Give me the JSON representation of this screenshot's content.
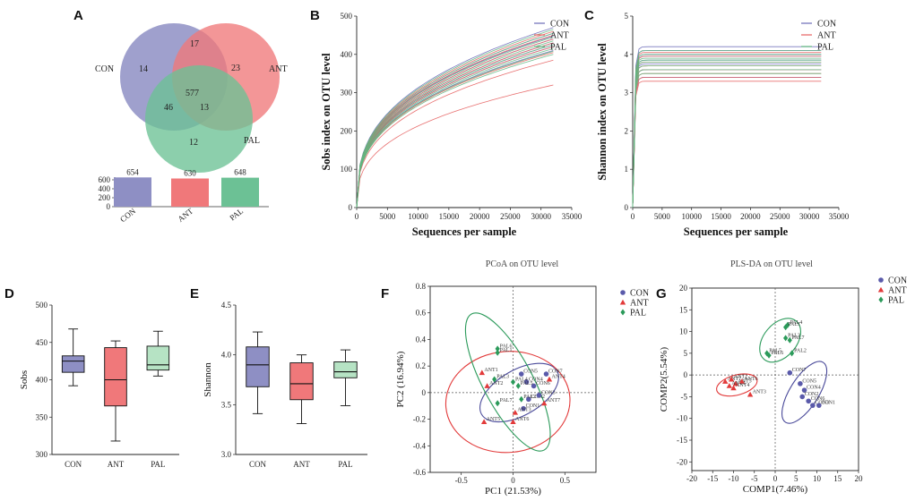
{
  "colors": {
    "CON": "#4a4a9a",
    "ANT": "#e23a3a",
    "PAL": "#2b9a5a",
    "CON_fill": "#8e8fc4",
    "ANT_fill": "#f0787a",
    "PAL_fill": "#6cc195",
    "CON_curve": "#6a6ab8",
    "ANT_curve": "#e56060",
    "PAL_curve": "#5fb77f"
  },
  "groups": [
    "CON",
    "ANT",
    "PAL"
  ],
  "chart_data": [
    {
      "panel": "A",
      "type": "venn",
      "labels": [
        "CON",
        "ANT",
        "PAL"
      ],
      "regions": {
        "CON_only": "14",
        "ANT_only": "23",
        "PAL_only": "12",
        "CON_ANT": "17",
        "CON_PAL": "46",
        "ANT_PAL": "13",
        "all": "577"
      },
      "bar": {
        "type": "bar",
        "categories": [
          "CON",
          "ANT",
          "PAL"
        ],
        "values": [
          654,
          630,
          648
        ],
        "value_labels": [
          "654",
          "630",
          "648"
        ],
        "ylim": [
          0,
          600
        ],
        "yticks": [
          "0",
          "200",
          "400",
          "600"
        ]
      }
    },
    {
      "panel": "B",
      "type": "line",
      "title": "",
      "xlabel": "Sequences per sample",
      "ylabel": "Sobs index on OTU level",
      "xlim": [
        0,
        35000
      ],
      "ylim": [
        0,
        500
      ],
      "xticks": [
        "0",
        "5000",
        "10000",
        "15000",
        "20000",
        "25000",
        "30000",
        "35000"
      ],
      "yticks": [
        "0",
        "100",
        "200",
        "300",
        "400",
        "500"
      ],
      "legend": [
        "CON",
        "ANT",
        "PAL"
      ],
      "max_x": 32000,
      "final_values": {
        "CON": [
          470,
          455,
          448,
          440,
          430,
          425,
          420,
          410
        ],
        "ANT": [
          460,
          450,
          440,
          430,
          420,
          405,
          385,
          320
        ],
        "PAL": [
          465,
          455,
          445,
          435,
          425,
          415,
          408,
          400
        ]
      }
    },
    {
      "panel": "C",
      "type": "line",
      "xlabel": "Sequences per sample",
      "ylabel": "Shannon index on OTU level",
      "xlim": [
        0,
        35000
      ],
      "ylim": [
        0,
        5
      ],
      "xticks": [
        "0",
        "5000",
        "10000",
        "15000",
        "20000",
        "25000",
        "30000",
        "35000"
      ],
      "yticks": [
        "0",
        "1",
        "2",
        "3",
        "4",
        "5"
      ],
      "legend": [
        "CON",
        "ANT",
        "PAL"
      ],
      "max_x": 32000,
      "final_values": {
        "CON": [
          4.2,
          4.1,
          4.0,
          3.95,
          3.85,
          3.75,
          3.6,
          3.4
        ],
        "ANT": [
          4.05,
          3.95,
          3.8,
          3.7,
          3.6,
          3.5,
          3.4,
          3.3
        ],
        "PAL": [
          4.1,
          4.0,
          3.9,
          3.85,
          3.8,
          3.7,
          3.6,
          3.5
        ]
      }
    },
    {
      "panel": "D",
      "type": "box",
      "ylabel": "Sobs",
      "categories": [
        "CON",
        "ANT",
        "PAL"
      ],
      "ylim": [
        300,
        500
      ],
      "yticks": [
        "300",
        "350",
        "400",
        "450",
        "500"
      ],
      "boxes": [
        {
          "min": 392,
          "q1": 410,
          "median": 425,
          "q3": 432,
          "max": 468
        },
        {
          "min": 318,
          "q1": 365,
          "median": 400,
          "q3": 443,
          "max": 452
        },
        {
          "min": 405,
          "q1": 413,
          "median": 420,
          "q3": 445,
          "max": 465
        }
      ]
    },
    {
      "panel": "E",
      "type": "box",
      "ylabel": "Shannon",
      "categories": [
        "CON",
        "ANT",
        "PAL"
      ],
      "ylim": [
        3.0,
        4.5
      ],
      "yticks": [
        "3.0",
        "3.5",
        "4.0",
        "4.5"
      ],
      "boxes": [
        {
          "min": 3.41,
          "q1": 3.68,
          "median": 3.9,
          "q3": 4.08,
          "max": 4.23
        },
        {
          "min": 3.31,
          "q1": 3.55,
          "median": 3.71,
          "q3": 3.92,
          "max": 4.0
        },
        {
          "min": 3.49,
          "q1": 3.77,
          "median": 3.83,
          "q3": 3.93,
          "max": 4.05
        }
      ]
    },
    {
      "panel": "F",
      "type": "scatter",
      "title": "PCoA on OTU level",
      "xlabel": "PC1 (21.53%)",
      "ylabel": "PC2 (16.94%)",
      "xlim": [
        -0.8,
        0.8
      ],
      "ylim": [
        -0.6,
        0.8
      ],
      "xticks": [
        "-0.5",
        "0",
        "0.5"
      ],
      "yticks": [
        "-0.6",
        "-0.4",
        "-0.2",
        "0",
        "0.2",
        "0.4",
        "0.6",
        "0.8"
      ],
      "legend": [
        "CON",
        "ANT",
        "PAL"
      ],
      "points": [
        {
          "g": "CON",
          "x": 0.08,
          "y": 0.14,
          "label": "CON5"
        },
        {
          "g": "CON",
          "x": 0.13,
          "y": 0.08,
          "label": "CON4"
        },
        {
          "g": "CON",
          "x": 0.2,
          "y": 0.05,
          "label": "CON6"
        },
        {
          "g": "CON",
          "x": 0.15,
          "y": -0.05,
          "label": "CON2"
        },
        {
          "g": "CON",
          "x": 0.25,
          "y": -0.02,
          "label": "CON3"
        },
        {
          "g": "CON",
          "x": 0.32,
          "y": 0.14,
          "label": "CON7"
        },
        {
          "g": "CON",
          "x": 0.1,
          "y": -0.12,
          "label": "CON1"
        },
        {
          "g": "ANT",
          "x": -0.3,
          "y": 0.15,
          "label": "ANT1"
        },
        {
          "g": "ANT",
          "x": -0.25,
          "y": 0.05,
          "label": "ANT2"
        },
        {
          "g": "ANT",
          "x": -0.28,
          "y": -0.22,
          "label": "ANT5"
        },
        {
          "g": "ANT",
          "x": 0.3,
          "y": -0.08,
          "label": "ANT7"
        },
        {
          "g": "ANT",
          "x": 0.35,
          "y": 0.1,
          "label": "ANT4"
        },
        {
          "g": "ANT",
          "x": 0.02,
          "y": -0.15,
          "label": "ANT3"
        },
        {
          "g": "ANT",
          "x": 0.0,
          "y": -0.22,
          "label": "ANT6"
        },
        {
          "g": "PAL",
          "x": -0.15,
          "y": 0.33,
          "label": "PAL6"
        },
        {
          "g": "PAL",
          "x": -0.15,
          "y": 0.3,
          "label": "PAL1"
        },
        {
          "g": "PAL",
          "x": -0.18,
          "y": 0.1,
          "label": "PAL3"
        },
        {
          "g": "PAL",
          "x": 0.0,
          "y": 0.08,
          "label": "PAL4"
        },
        {
          "g": "PAL",
          "x": -0.15,
          "y": -0.08,
          "label": "PAL7"
        },
        {
          "g": "PAL",
          "x": 0.05,
          "y": 0.05,
          "label": "PAL5"
        },
        {
          "g": "PAL",
          "x": 0.08,
          "y": -0.05,
          "label": "PAL2"
        }
      ],
      "ellipses": [
        {
          "g": "CON",
          "cx": 0.06,
          "cy": 0.0,
          "rx": 0.42,
          "ry": 0.17,
          "rot": -30
        },
        {
          "g": "ANT",
          "cx": -0.05,
          "cy": -0.07,
          "rx": 0.6,
          "ry": 0.38,
          "rot": -5
        },
        {
          "g": "PAL",
          "cx": -0.05,
          "cy": 0.08,
          "rx": 0.24,
          "ry": 0.58,
          "rot": -28
        }
      ]
    },
    {
      "panel": "G",
      "type": "scatter",
      "title": "PLS-DA on OTU level",
      "xlabel": "COMP1(7.46%)",
      "ylabel": "COMP2(5.54%)",
      "xlim": [
        -20,
        20
      ],
      "ylim": [
        -22,
        20
      ],
      "xticks": [
        "-20",
        "-15",
        "-10",
        "-5",
        "0",
        "5",
        "10",
        "15",
        "20"
      ],
      "yticks": [
        "-20",
        "-15",
        "-10",
        "-5",
        "0",
        "5",
        "10",
        "15",
        "20"
      ],
      "legend": [
        "CON",
        "ANT",
        "PAL"
      ],
      "points": [
        {
          "g": "CON",
          "x": 3.5,
          "y": 0.5,
          "label": "CON7"
        },
        {
          "g": "CON",
          "x": 6,
          "y": -2,
          "label": "CON5"
        },
        {
          "g": "CON",
          "x": 7,
          "y": -3.5,
          "label": "CON4"
        },
        {
          "g": "CON",
          "x": 6.5,
          "y": -5,
          "label": "CON2"
        },
        {
          "g": "CON",
          "x": 8,
          "y": -6,
          "label": "CON6"
        },
        {
          "g": "CON",
          "x": 9,
          "y": -7,
          "label": "CON3"
        },
        {
          "g": "CON",
          "x": 10.5,
          "y": -7,
          "label": "CON1"
        },
        {
          "g": "ANT",
          "x": -12,
          "y": -1.5,
          "label": "ANT7"
        },
        {
          "g": "ANT",
          "x": -10.5,
          "y": -1,
          "label": "ANT2"
        },
        {
          "g": "ANT",
          "x": -9.5,
          "y": -2,
          "label": "ANT5"
        },
        {
          "g": "ANT",
          "x": -11,
          "y": -2.5,
          "label": "ANT1"
        },
        {
          "g": "ANT",
          "x": -8,
          "y": -1.5,
          "label": "ANT6"
        },
        {
          "g": "ANT",
          "x": -10,
          "y": -3,
          "label": "ANT4"
        },
        {
          "g": "ANT",
          "x": -6,
          "y": -4.5,
          "label": "ANT3"
        },
        {
          "g": "PAL",
          "x": 3,
          "y": 11.5,
          "label": "PAL4"
        },
        {
          "g": "PAL",
          "x": 2.5,
          "y": 11,
          "label": "PAL1"
        },
        {
          "g": "PAL",
          "x": 2.5,
          "y": 8.5,
          "label": "PAL3"
        },
        {
          "g": "PAL",
          "x": 3.5,
          "y": 8,
          "label": "PAL7"
        },
        {
          "g": "PAL",
          "x": -2,
          "y": 5,
          "label": "PAL5"
        },
        {
          "g": "PAL",
          "x": -1.5,
          "y": 4.5,
          "label": "PAL6"
        },
        {
          "g": "PAL",
          "x": 4,
          "y": 5,
          "label": "PAL2"
        }
      ],
      "ellipses": [
        {
          "g": "CON",
          "cx": 7,
          "cy": -4,
          "rx": 8.5,
          "ry": 3.3,
          "rot": -58
        },
        {
          "g": "ANT",
          "cx": -9.2,
          "cy": -2.3,
          "rx": 5,
          "ry": 2.3,
          "rot": -15
        },
        {
          "g": "PAL",
          "cx": 1.2,
          "cy": 8,
          "rx": 6,
          "ry": 3.8,
          "rot": -50
        }
      ]
    }
  ],
  "panel_letters": [
    "A",
    "B",
    "C",
    "D",
    "E",
    "F",
    "G"
  ]
}
